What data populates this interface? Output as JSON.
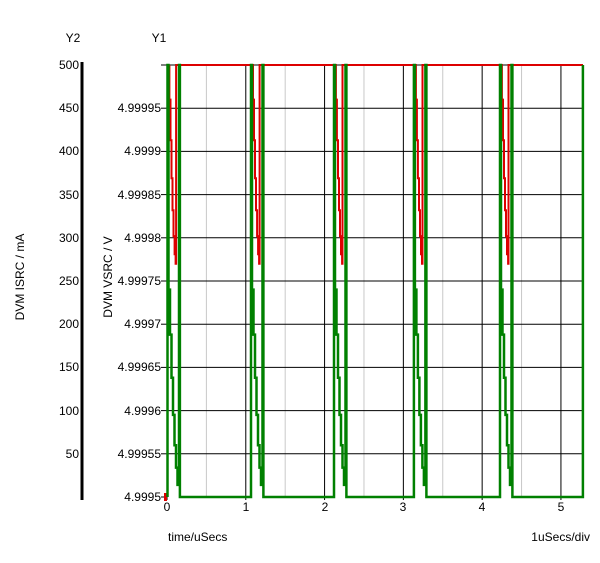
{
  "header": {
    "y2_label": "Y2",
    "y1_label": "Y1"
  },
  "axes": {
    "y2": {
      "title": "DVM ISRC / mA",
      "tick_labels": [
        "500",
        "450",
        "400",
        "350",
        "300",
        "250",
        "200",
        "150",
        "100",
        "50"
      ],
      "tick_values": [
        500,
        450,
        400,
        350,
        300,
        250,
        200,
        150,
        100,
        50
      ]
    },
    "y1": {
      "title": "DVM VSRC / V",
      "tick_labels": [
        "4.99995",
        "4.9999",
        "4.99985",
        "4.9998",
        "4.99975",
        "4.9997",
        "4.99965",
        "4.9996",
        "4.99955",
        "4.9995"
      ],
      "tick_values": [
        4.99995,
        4.9999,
        4.99985,
        4.9998,
        4.99975,
        4.9997,
        4.99965,
        4.9996,
        4.99955,
        4.9995
      ]
    },
    "x": {
      "title": "time/uSecs",
      "scale_note": "1uSecs/div",
      "tick_labels": [
        "0",
        "1",
        "2",
        "3",
        "4",
        "5"
      ],
      "tick_values": [
        0,
        1,
        2,
        3,
        4,
        5
      ]
    }
  },
  "chart_data": {
    "type": "line",
    "title": "",
    "x_label": "time/uSecs",
    "x_range": [
      0,
      5.28
    ],
    "x_major_gridlines": [
      0,
      1,
      2,
      3,
      4,
      5
    ],
    "x_minor_gridlines": [
      0.5,
      1.5,
      2.5,
      3.5,
      4.5
    ],
    "y1_label": "DVM VSRC / V",
    "y1_range": [
      4.9995,
      5.0
    ],
    "y2_label": "DVM ISRC / mA",
    "y2_range": [
      0,
      500
    ],
    "h_gridline_values_y1": [
      5.0,
      4.99995,
      4.9999,
      4.99985,
      4.9998,
      4.99975,
      4.9997,
      4.99965,
      4.9996,
      4.99955
    ],
    "grid": true,
    "legend": false,
    "pulse_period_us": 1.05,
    "series": [
      {
        "name": "DVM VSRC",
        "axis": "y1",
        "color": "#dd0000",
        "baseline": 5.0,
        "origin_marker": {
          "time": 0,
          "value": 4.9995
        },
        "dip_offset": 0.025,
        "event_times": [
          0.006,
          1.066,
          2.119,
          3.134,
          4.226
        ],
        "dip_profile": [
          [
            0,
            5.0
          ],
          [
            0,
            4.99996
          ],
          [
            0.013,
            4.99996
          ],
          [
            0.013,
            4.999913
          ],
          [
            0.026,
            4.999913
          ],
          [
            0.026,
            4.999869
          ],
          [
            0.039,
            4.999869
          ],
          [
            0.039,
            4.999832
          ],
          [
            0.052,
            4.999832
          ],
          [
            0.052,
            4.999802
          ],
          [
            0.065,
            4.999802
          ],
          [
            0.065,
            4.999781
          ],
          [
            0.078,
            4.999781
          ],
          [
            0.078,
            4.99977
          ],
          [
            0.084,
            4.99977
          ],
          [
            0.084,
            5.0
          ]
        ]
      },
      {
        "name": "DVM ISRC",
        "axis": "y2",
        "color": "#008000",
        "baseline": 0,
        "event_times": [
          0.006,
          1.066,
          2.119,
          3.134,
          4.226
        ],
        "clipped_event_time": 5.279,
        "pulse_profile": [
          [
            0,
            0
          ],
          [
            0,
            500
          ],
          [
            0.013,
            500
          ],
          [
            0.013,
            240
          ],
          [
            0.032,
            240
          ],
          [
            0.032,
            188
          ],
          [
            0.051,
            188
          ],
          [
            0.051,
            138
          ],
          [
            0.07,
            138
          ],
          [
            0.07,
            95
          ],
          [
            0.089,
            95
          ],
          [
            0.089,
            60
          ],
          [
            0.108,
            60
          ],
          [
            0.108,
            34
          ],
          [
            0.127,
            34
          ],
          [
            0.127,
            14
          ],
          [
            0.146,
            14
          ],
          [
            0.146,
            500
          ],
          [
            0.158,
            500
          ],
          [
            0.158,
            0
          ]
        ]
      }
    ],
    "colors": {
      "major_grid": "#000000",
      "minor_grid": "#c8c8c8",
      "axis": "#000000",
      "background": "#ffffff"
    }
  }
}
